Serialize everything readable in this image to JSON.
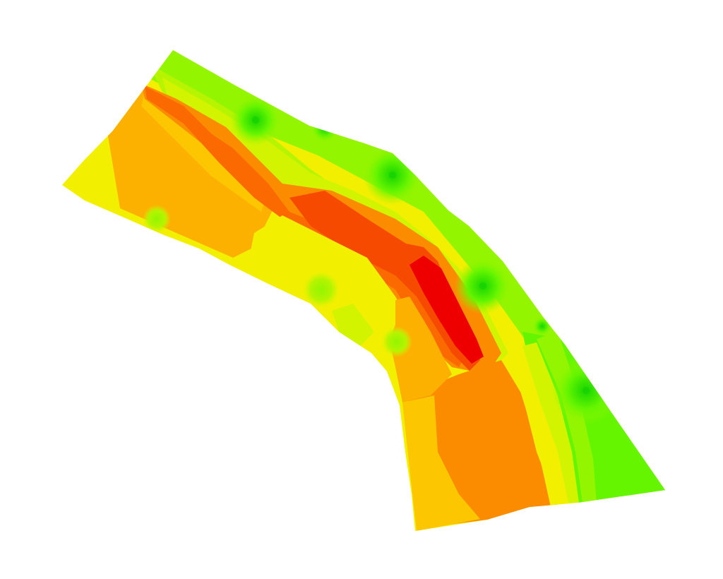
{
  "map": {
    "kind": "interpolated-surface",
    "palette": {
      "red": "#ee0000",
      "red_orange": "#f54a00",
      "dark_orange": "#fa6a00",
      "orange": "#fb8c00",
      "light_orange": "#fcb000",
      "amber": "#fcc700",
      "yellow": "#f2f000",
      "yellow_green": "#d2f400",
      "light_green": "#b6f400",
      "green": "#94f500",
      "bright_green": "#66f500",
      "deep_green": "#2fe000",
      "point_green": "#19d400"
    }
  }
}
